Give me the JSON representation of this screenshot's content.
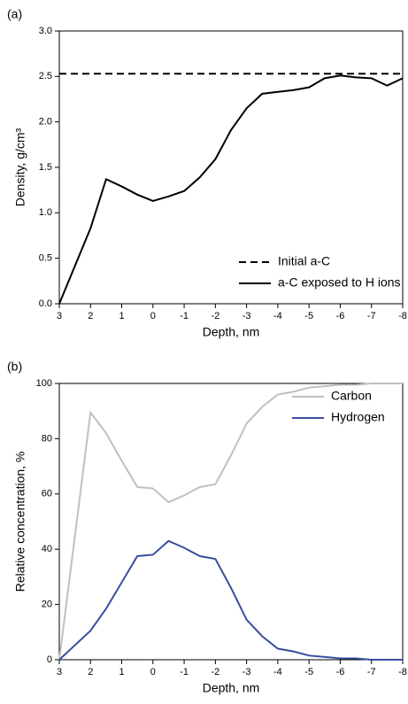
{
  "chart_data": [
    {
      "type": "line",
      "panel": "(a)",
      "x_label": "Depth, nm",
      "y_label": "Density, g/cm³",
      "xlim": [
        3,
        -8
      ],
      "xticks": [
        3,
        2,
        1,
        0,
        -1,
        -2,
        -3,
        -4,
        -5,
        -6,
        -7,
        -8
      ],
      "ylim": [
        0,
        3
      ],
      "yticks": [
        {
          "value": 0,
          "label": "0.0"
        },
        0.5,
        {
          "value": 1,
          "label": "1.0"
        },
        1.5,
        {
          "value": 2,
          "label": "2.0"
        },
        2.5,
        {
          "value": 3,
          "label": "3.0"
        }
      ],
      "legend": "lower right",
      "series": [
        {
          "name": "Initial a-C",
          "color": "#000000",
          "dash": true,
          "x": [
            3,
            -8
          ],
          "values": [
            2.53,
            2.53
          ]
        },
        {
          "name": "a-C exposed to H ions",
          "color": "#000000",
          "dash": false,
          "x": [
            3,
            2,
            1.5,
            1,
            0.5,
            0,
            -0.5,
            -1,
            -1.5,
            -2,
            -2.5,
            -3,
            -3.5,
            -4,
            -4.5,
            -5,
            -5.5,
            -6,
            -6.5,
            -7,
            -7.5,
            -8
          ],
          "values": [
            0,
            0.83,
            1.37,
            1.29,
            1.2,
            1.13,
            1.18,
            1.24,
            1.39,
            1.59,
            1.91,
            2.15,
            2.31,
            2.33,
            2.35,
            2.38,
            2.48,
            2.51,
            2.49,
            2.48,
            2.4,
            2.48
          ]
        }
      ]
    },
    {
      "type": "line",
      "panel": "(b)",
      "x_label": "Depth, nm",
      "y_label": "Relative concentration, %",
      "xlim": [
        3,
        -8
      ],
      "xticks": [
        3,
        2,
        1,
        0,
        -1,
        -2,
        -3,
        -4,
        -5,
        -6,
        -7,
        -8
      ],
      "ylim": [
        0,
        100
      ],
      "yticks": [
        0,
        20,
        40,
        60,
        80,
        100
      ],
      "legend": "upper right",
      "series": [
        {
          "name": "Carbon",
          "color": "#c0c0c0",
          "dash": false,
          "x": [
            3,
            2,
            1.5,
            1,
            0.5,
            0,
            -0.5,
            -1,
            -1.5,
            -2,
            -2.5,
            -3,
            -3.5,
            -4,
            -4.5,
            -5,
            -5.5,
            -6,
            -6.5,
            -7,
            -8
          ],
          "values": [
            0,
            89.5,
            82,
            72,
            62.5,
            62,
            57,
            59.5,
            62.5,
            63.5,
            74,
            85.5,
            91.5,
            96,
            97,
            98.5,
            99,
            99.5,
            99.5,
            100,
            100
          ]
        },
        {
          "name": "Hydrogen",
          "color": "#3a4ea0",
          "dash": false,
          "x": [
            3,
            2,
            1.5,
            1,
            0.5,
            0,
            -0.5,
            -1,
            -1.5,
            -2,
            -2.5,
            -3,
            -3.5,
            -4,
            -4.5,
            -5,
            -5.5,
            -6,
            -6.5,
            -7,
            -8
          ],
          "values": [
            0,
            10.5,
            18.5,
            28,
            37.5,
            38,
            43,
            40.5,
            37.5,
            36.5,
            26,
            14.5,
            8.5,
            4,
            3,
            1.5,
            1,
            0.5,
            0.5,
            0,
            0
          ]
        }
      ]
    }
  ]
}
